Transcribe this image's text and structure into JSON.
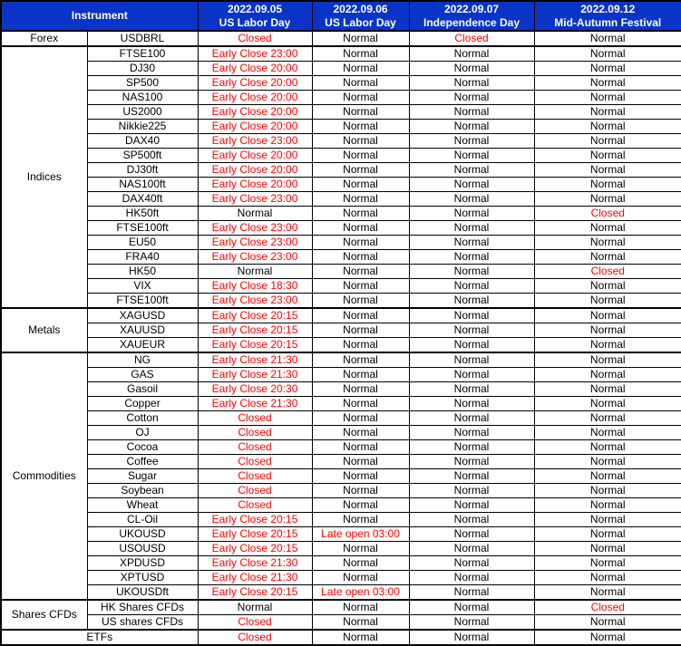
{
  "table": {
    "header": {
      "instrument_label": "Instrument",
      "date_columns": [
        {
          "date": "2022.09.05",
          "holiday": "US Labor Day"
        },
        {
          "date": "2022.09.06",
          "holiday": "US Labor Day"
        },
        {
          "date": "2022.09.07",
          "holiday": "Independence Day"
        },
        {
          "date": "2022.09.12",
          "holiday": "Mid-Autumn Festival"
        }
      ]
    },
    "colors": {
      "header_bg": "#0a34c8",
      "header_text": "#ffffff",
      "border": "#000000",
      "row_bg": "#ffffff",
      "special_text": "#ff0000",
      "normal_text": "#000000"
    },
    "normal_value": "Normal",
    "sections": [
      {
        "category": "Forex",
        "rows": [
          {
            "instrument": "USDBRL",
            "values": [
              "Closed",
              "Normal",
              "Closed",
              "Normal"
            ]
          }
        ]
      },
      {
        "category": "Indices",
        "rows": [
          {
            "instrument": "FTSE100",
            "values": [
              "Early Close 23:00",
              "Normal",
              "Normal",
              "Normal"
            ]
          },
          {
            "instrument": "DJ30",
            "values": [
              "Early Close 20:00",
              "Normal",
              "Normal",
              "Normal"
            ]
          },
          {
            "instrument": "SP500",
            "values": [
              "Early Close 20:00",
              "Normal",
              "Normal",
              "Normal"
            ]
          },
          {
            "instrument": "NAS100",
            "values": [
              "Early Close 20:00",
              "Normal",
              "Normal",
              "Normal"
            ]
          },
          {
            "instrument": "US2000",
            "values": [
              "Early Close 20:00",
              "Normal",
              "Normal",
              "Normal"
            ]
          },
          {
            "instrument": "Nikkie225",
            "values": [
              "Early Close 20:00",
              "Normal",
              "Normal",
              "Normal"
            ]
          },
          {
            "instrument": "DAX40",
            "values": [
              "Early Close 23:00",
              "Normal",
              "Normal",
              "Normal"
            ]
          },
          {
            "instrument": "SP500ft",
            "values": [
              "Early Close 20:00",
              "Normal",
              "Normal",
              "Normal"
            ]
          },
          {
            "instrument": "DJ30ft",
            "values": [
              "Early Close 20:00",
              "Normal",
              "Normal",
              "Normal"
            ]
          },
          {
            "instrument": "NAS100ft",
            "values": [
              "Early Close 20:00",
              "Normal",
              "Normal",
              "Normal"
            ]
          },
          {
            "instrument": "DAX40ft",
            "values": [
              "Early Close 23:00",
              "Normal",
              "Normal",
              "Normal"
            ]
          },
          {
            "instrument": "HK50ft",
            "values": [
              "Normal",
              "Normal",
              "Normal",
              "Closed"
            ]
          },
          {
            "instrument": "FTSE100ft",
            "values": [
              "Early Close 23:00",
              "Normal",
              "Normal",
              "Normal"
            ]
          },
          {
            "instrument": "EU50",
            "values": [
              "Early Close 23:00",
              "Normal",
              "Normal",
              "Normal"
            ]
          },
          {
            "instrument": "FRA40",
            "values": [
              "Early Close 23:00",
              "Normal",
              "Normal",
              "Normal"
            ]
          },
          {
            "instrument": "HK50",
            "values": [
              "Normal",
              "Normal",
              "Normal",
              "Closed"
            ]
          },
          {
            "instrument": "VIX",
            "values": [
              "Early Close 18:30",
              "Normal",
              "Normal",
              "Normal"
            ]
          },
          {
            "instrument": "FTSE100ft",
            "values": [
              "Early Close 23:00",
              "Normal",
              "Normal",
              "Normal"
            ]
          }
        ]
      },
      {
        "category": "Metals",
        "rows": [
          {
            "instrument": "XAGUSD",
            "values": [
              "Early Close 20:15",
              "Normal",
              "Normal",
              "Normal"
            ]
          },
          {
            "instrument": "XAUUSD",
            "values": [
              "Early Close 20:15",
              "Normal",
              "Normal",
              "Normal"
            ]
          },
          {
            "instrument": "XAUEUR",
            "values": [
              "Early Close 20:15",
              "Normal",
              "Normal",
              "Normal"
            ]
          }
        ]
      },
      {
        "category": "Commodities",
        "rows": [
          {
            "instrument": "NG",
            "values": [
              "Early Close 21:30",
              "Normal",
              "Normal",
              "Normal"
            ]
          },
          {
            "instrument": "GAS",
            "values": [
              "Early Close 21:30",
              "Normal",
              "Normal",
              "Normal"
            ]
          },
          {
            "instrument": "Gasoil",
            "values": [
              "Early Close 20:30",
              "Normal",
              "Normal",
              "Normal"
            ]
          },
          {
            "instrument": "Copper",
            "values": [
              "Early Close 21:30",
              "Normal",
              "Normal",
              "Normal"
            ]
          },
          {
            "instrument": "Cotton",
            "values": [
              "Closed",
              "Normal",
              "Normal",
              "Normal"
            ]
          },
          {
            "instrument": "OJ",
            "values": [
              "Closed",
              "Normal",
              "Normal",
              "Normal"
            ]
          },
          {
            "instrument": "Cocoa",
            "values": [
              "Closed",
              "Normal",
              "Normal",
              "Normal"
            ]
          },
          {
            "instrument": "Coffee",
            "values": [
              "Closed",
              "Normal",
              "Normal",
              "Normal"
            ]
          },
          {
            "instrument": "Sugar",
            "values": [
              "Closed",
              "Normal",
              "Normal",
              "Normal"
            ]
          },
          {
            "instrument": "Soybean",
            "values": [
              "Closed",
              "Normal",
              "Normal",
              "Normal"
            ]
          },
          {
            "instrument": "Wheat",
            "values": [
              "Closed",
              "Normal",
              "Normal",
              "Normal"
            ]
          },
          {
            "instrument": "CL-Oil",
            "values": [
              "Early Close 20:15",
              "Normal",
              "Normal",
              "Normal"
            ]
          },
          {
            "instrument": "UKOUSD",
            "values": [
              "Early Close 20:15",
              "Late open 03:00",
              "Normal",
              "Normal"
            ]
          },
          {
            "instrument": "USOUSD",
            "values": [
              "Early Close 20:15",
              "Normal",
              "Normal",
              "Normal"
            ]
          },
          {
            "instrument": "XPDUSD",
            "values": [
              "Early Close 21:30",
              "Normal",
              "Normal",
              "Normal"
            ]
          },
          {
            "instrument": "XPTUSD",
            "values": [
              "Early Close 21:30",
              "Normal",
              "Normal",
              "Normal"
            ]
          },
          {
            "instrument": "UKOUSDft",
            "values": [
              "Early Close 20:15",
              "Late open 03:00",
              "Normal",
              "Normal"
            ]
          }
        ]
      },
      {
        "category": "Shares CFDs",
        "rows": [
          {
            "instrument": "HK Shares CFDs",
            "values": [
              "Normal",
              "Normal",
              "Normal",
              "Closed"
            ]
          },
          {
            "instrument": "US shares CFDs",
            "values": [
              "Closed",
              "Normal",
              "Normal",
              "Normal"
            ]
          }
        ]
      },
      {
        "category": "ETFs",
        "full_width": true,
        "rows": [
          {
            "instrument": null,
            "values": [
              "Closed",
              "Normal",
              "Normal",
              "Normal"
            ]
          }
        ]
      }
    ]
  }
}
